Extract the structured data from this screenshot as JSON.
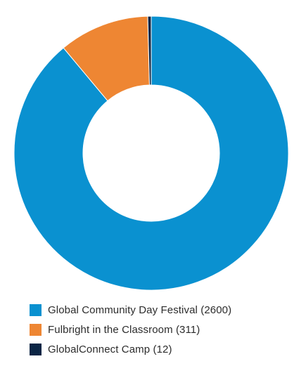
{
  "chart_data": {
    "type": "pie",
    "variant": "donut",
    "title": "",
    "legend_position": "bottom-left",
    "categories": [
      "Global Community Day Festival",
      "Fulbright in the Classroom",
      "GlobalConnect Camp"
    ],
    "values": [
      2600,
      311,
      12
    ],
    "colors": [
      "#0a91d0",
      "#ee8633",
      "#0b2545"
    ],
    "legend_labels": [
      "Global Community Day Festival (2600)",
      "Fulbright in the Classroom (311)",
      "GlobalConnect Camp (12)"
    ]
  }
}
